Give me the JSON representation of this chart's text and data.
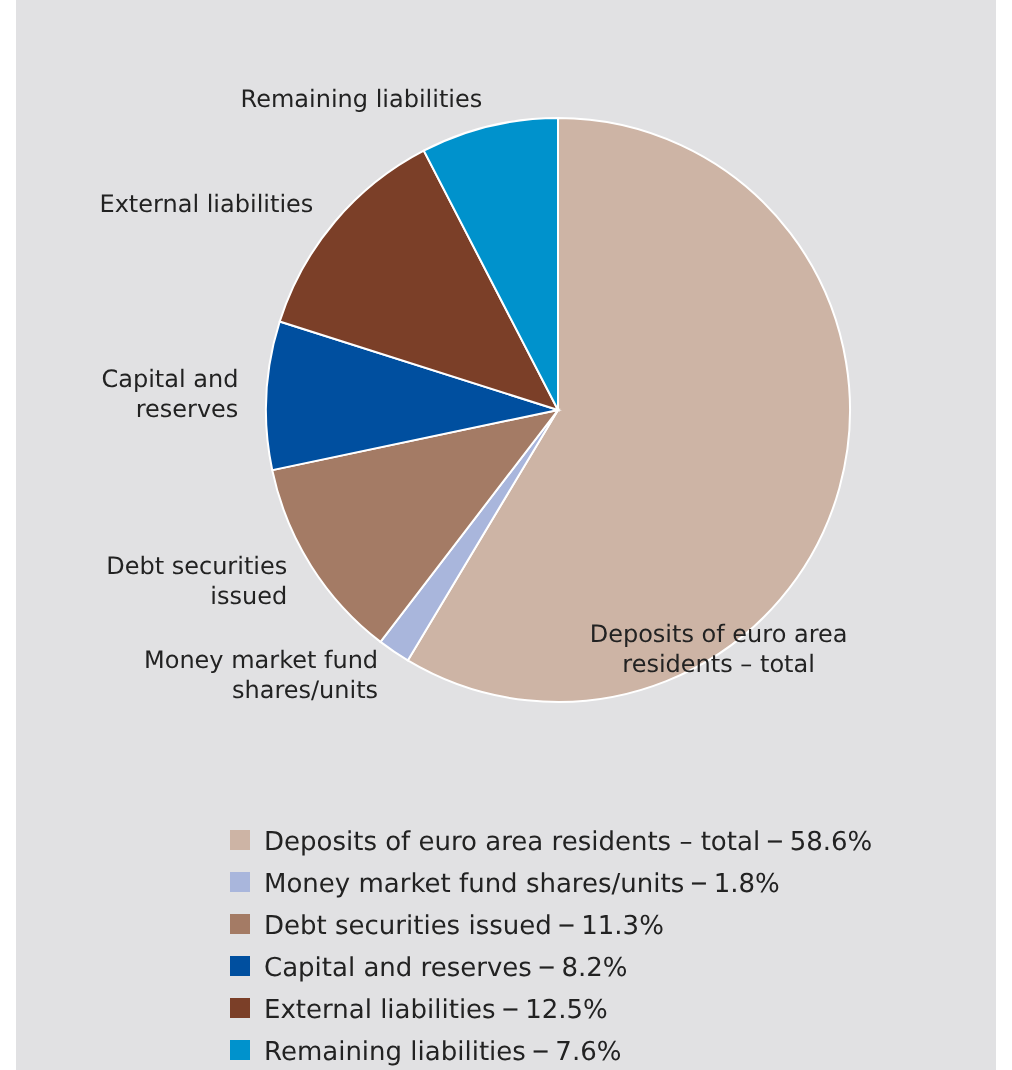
{
  "chart_data": {
    "type": "pie",
    "categories": [
      "Deposits of euro area residents – total",
      "Money market fund shares/units",
      "Debt securities issued",
      "Capital and reserves",
      "External liabilities",
      "Remaining liabilities"
    ],
    "values": [
      58.6,
      1.8,
      11.3,
      8.2,
      12.5,
      7.6
    ],
    "value_labels": [
      "58.6%",
      "1.8%",
      "11.3%",
      "8.2%",
      "12.5%",
      "7.6%"
    ],
    "colors": [
      "#cdb4a5",
      "#a9b6dc",
      "#a47b65",
      "#004f9f",
      "#7b3f28",
      "#0092cc"
    ],
    "legend": "bottom"
  }
}
